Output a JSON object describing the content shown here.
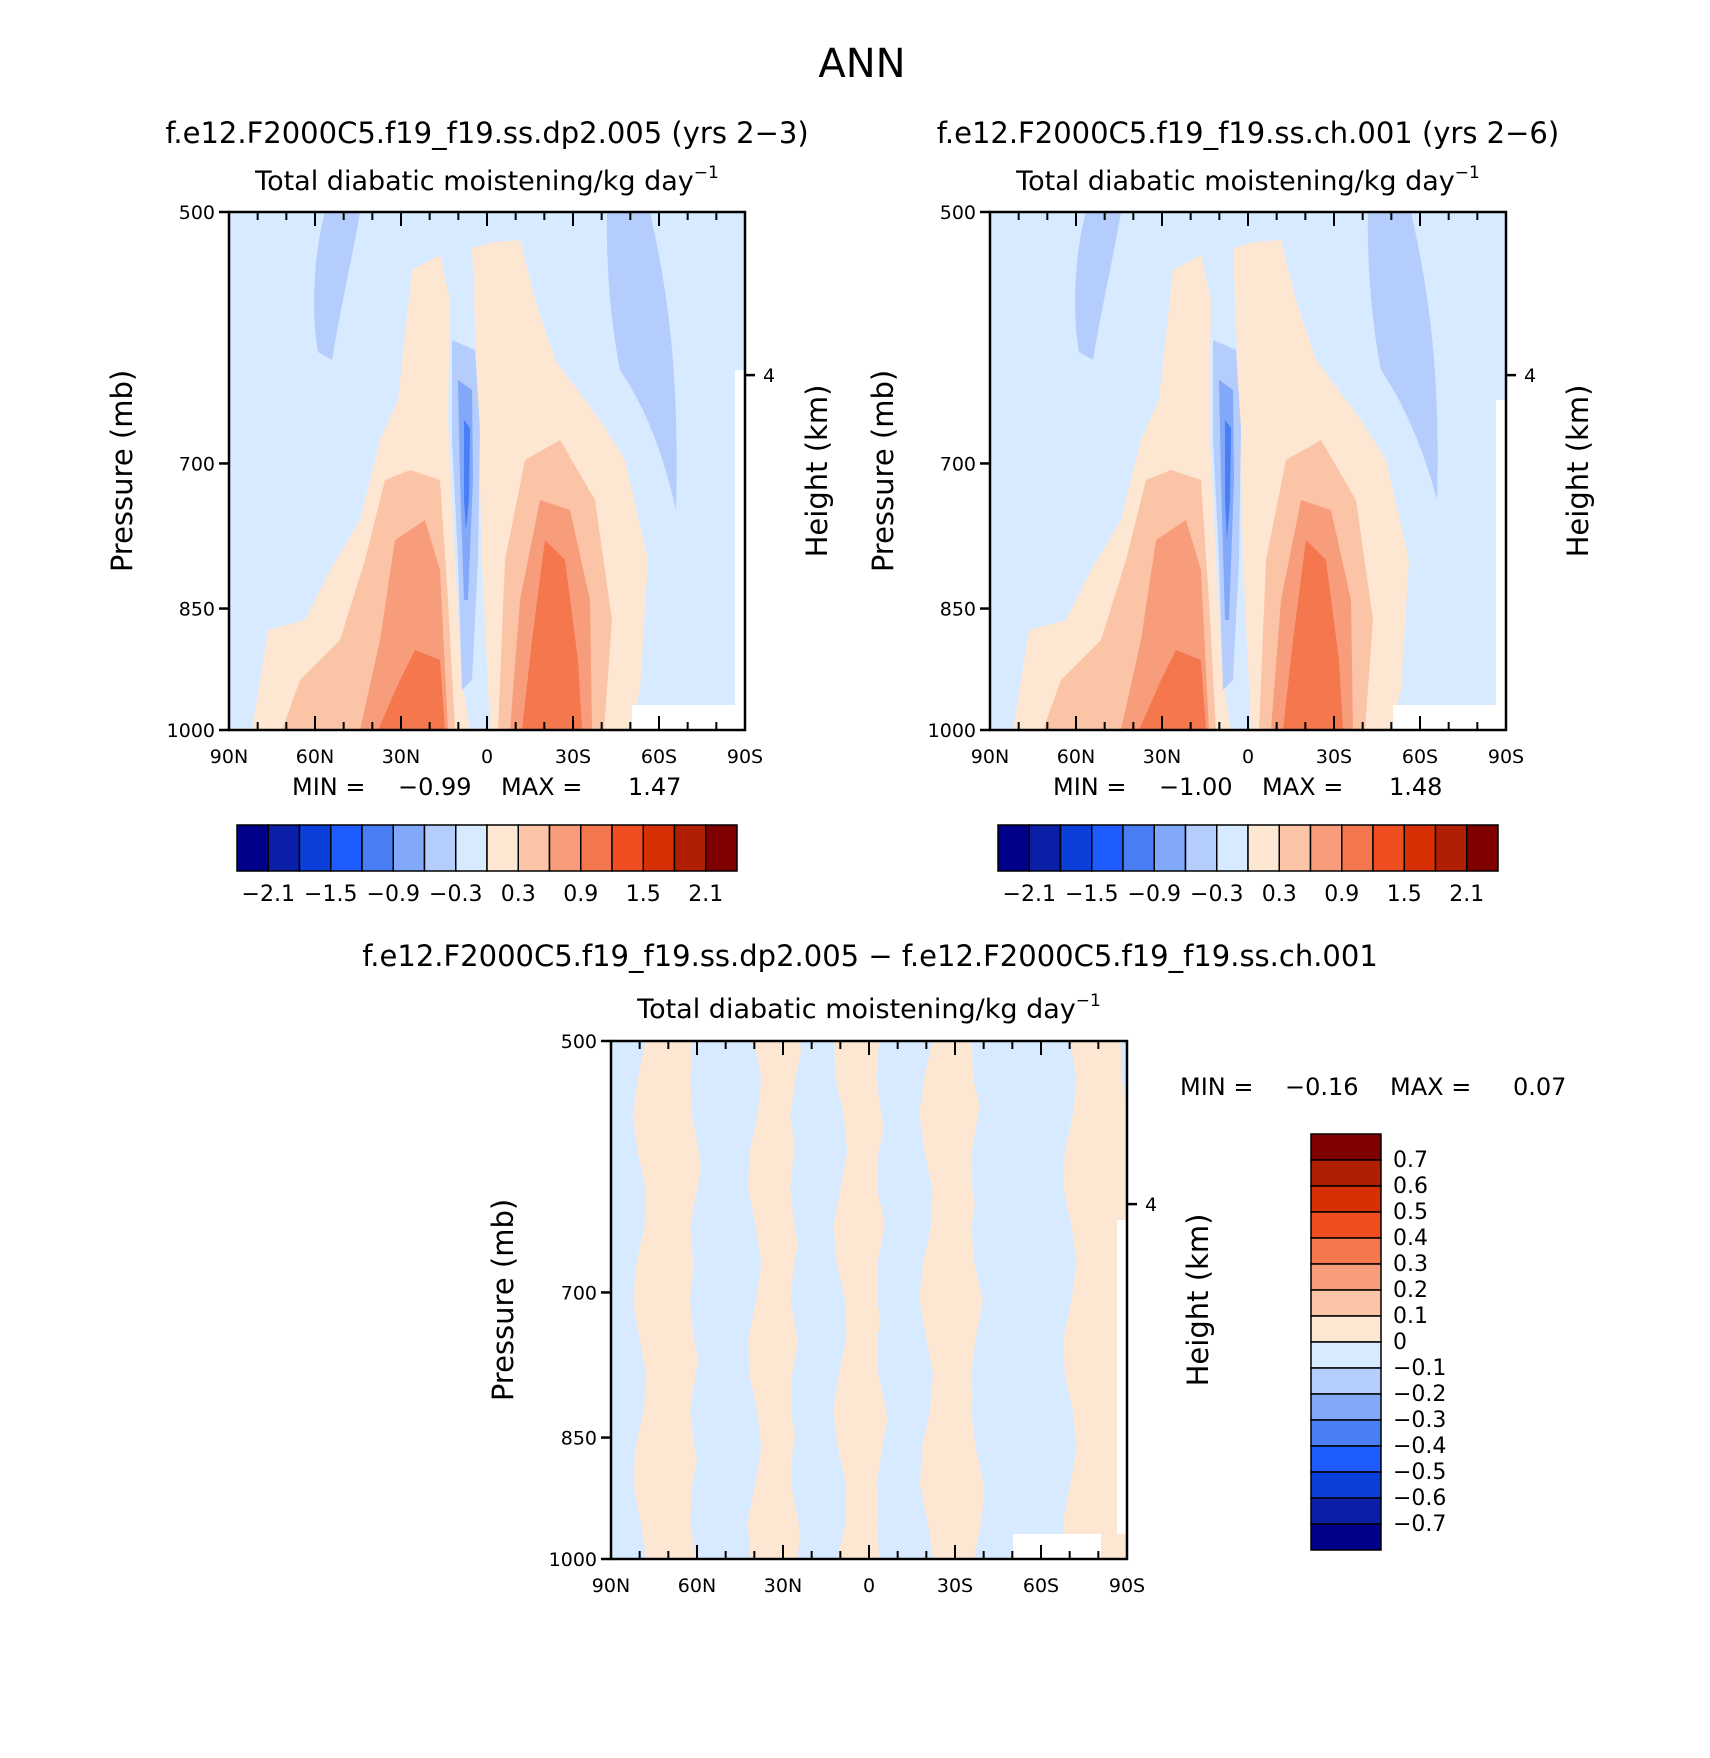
{
  "figure": {
    "title": "ANN",
    "colors": {
      "levels15": [
        "#00008b",
        "#0a1ea8",
        "#0b3fd9",
        "#1f5cff",
        "#4a7ef5",
        "#82a8fa",
        "#b5cdfc",
        "#d8eaff",
        "#fde7d3",
        "#fbc4a7",
        "#f89d7c",
        "#f5774e",
        "#f04d20",
        "#d83005",
        "#b01f02",
        "#7f0000"
      ],
      "levels_diff": [
        "#00008b",
        "#0a1ea8",
        "#0b3fd9",
        "#1f5cff",
        "#4a7ef5",
        "#82a8fa",
        "#b5cdfc",
        "#d8eaff",
        "#fde7d3",
        "#fbc4a7",
        "#f89d7c",
        "#f5774e",
        "#f04d20",
        "#d83005",
        "#b01f02",
        "#7f0000"
      ]
    }
  },
  "panels": [
    {
      "case_title": "f.e12.F2000C5.f19_f19.ss.dp2.005 (yrs 2−3)",
      "var_title": "Total diabatic moistening/kg day",
      "var_sup": "−1",
      "ylabel": "Pressure (mb)",
      "ylabel_right": "Height (km)",
      "min_label": "MIN =",
      "min_value": "−0.99",
      "max_label": "MAX =",
      "max_value": "1.47"
    },
    {
      "case_title": "f.e12.F2000C5.f19_f19.ss.ch.001 (yrs 2−6)",
      "var_title": "Total diabatic moistening/kg day",
      "var_sup": "−1",
      "ylabel": "Pressure (mb)",
      "ylabel_right": "Height (km)",
      "min_label": "MIN =",
      "min_value": "−1.00",
      "max_label": "MAX =",
      "max_value": "1.48"
    },
    {
      "case_title": "f.e12.F2000C5.f19_f19.ss.dp2.005 − f.e12.F2000C5.f19_f19.ss.ch.001",
      "var_title": "Total diabatic moistening/kg day",
      "var_sup": "−1",
      "ylabel": "Pressure (mb)",
      "ylabel_right": "Height (km)",
      "min_label": "MIN =",
      "min_value": "−0.16",
      "max_label": "MAX =",
      "max_value": "0.07"
    }
  ],
  "colorbar_main": {
    "labels": [
      "−2.1",
      "−1.5",
      "−0.9",
      "−0.3",
      "0.3",
      "0.9",
      "1.5",
      "2.1"
    ]
  },
  "colorbar_diff": {
    "labels": [
      "0.7",
      "0.6",
      "0.5",
      "0.4",
      "0.3",
      "0.2",
      "0.1",
      "0",
      "−0.1",
      "−0.2",
      "−0.3",
      "−0.4",
      "−0.5",
      "−0.6",
      "−0.7"
    ]
  },
  "chart_data": [
    {
      "type": "heatmap",
      "title": "f.e12.F2000C5.f19_f19.ss.dp2.005 (yrs 2−3)",
      "subtitle": "Total diabatic moistening/kg day⁻¹",
      "xlabel": "",
      "ylabel": "Pressure (mb)",
      "ylabel_right": "Height (km)",
      "x_ticks": [
        "90N",
        "60N",
        "30N",
        "0",
        "30S",
        "60S",
        "90S"
      ],
      "y_ticks": [
        500,
        700,
        850,
        1000
      ],
      "right_ticks": [
        4
      ],
      "xlim": [
        90,
        -90
      ],
      "ylim": [
        1000,
        500
      ],
      "min": -0.99,
      "max": 1.47,
      "features": [
        {
          "lat": 5,
          "p": 730,
          "value": -0.9
        },
        {
          "lat": 32,
          "p": 940,
          "value": 1.2
        },
        {
          "lat": -22,
          "p": 860,
          "value": 1.2
        },
        {
          "lat": 55,
          "p": 560,
          "value": -0.5
        },
        {
          "lat": -45,
          "p": 580,
          "value": -0.5
        }
      ]
    },
    {
      "type": "heatmap",
      "title": "f.e12.F2000C5.f19_f19.ss.ch.001 (yrs 2−6)",
      "subtitle": "Total diabatic moistening/kg day⁻¹",
      "xlabel": "",
      "ylabel": "Pressure (mb)",
      "ylabel_right": "Height (km)",
      "x_ticks": [
        "90N",
        "60N",
        "30N",
        "0",
        "30S",
        "60S",
        "90S"
      ],
      "y_ticks": [
        500,
        700,
        850,
        1000
      ],
      "right_ticks": [
        4
      ],
      "xlim": [
        90,
        -90
      ],
      "ylim": [
        1000,
        500
      ],
      "min": -1.0,
      "max": 1.48,
      "features": [
        {
          "lat": 5,
          "p": 740,
          "value": -1.0
        },
        {
          "lat": 32,
          "p": 945,
          "value": 1.2
        },
        {
          "lat": -22,
          "p": 865,
          "value": 1.2
        },
        {
          "lat": 55,
          "p": 560,
          "value": -0.5
        },
        {
          "lat": -45,
          "p": 590,
          "value": -0.5
        }
      ]
    },
    {
      "type": "heatmap",
      "title": "f.e12.F2000C5.f19_f19.ss.dp2.005 − f.e12.F2000C5.f19_f19.ss.ch.001",
      "subtitle": "Total diabatic moistening/kg day⁻¹",
      "xlabel": "",
      "ylabel": "Pressure (mb)",
      "ylabel_right": "Height (km)",
      "x_ticks": [
        "90N",
        "60N",
        "30N",
        "0",
        "30S",
        "60S",
        "90S"
      ],
      "y_ticks": [
        500,
        700,
        850,
        1000
      ],
      "right_ticks": [
        4
      ],
      "xlim": [
        90,
        -90
      ],
      "ylim": [
        1000,
        500
      ],
      "min": -0.16,
      "max": 0.07,
      "bands": [
        {
          "lat_from": 90,
          "lat_to": 83,
          "sign": "neg"
        },
        {
          "lat_from": 80,
          "lat_to": 60,
          "sign": "pos"
        },
        {
          "lat_from": 60,
          "lat_to": 40,
          "sign": "neg"
        },
        {
          "lat_from": 40,
          "lat_to": 25,
          "sign": "pos"
        },
        {
          "lat_from": 25,
          "lat_to": 10,
          "sign": "neg"
        },
        {
          "lat_from": 10,
          "lat_to": -5,
          "sign": "pos"
        },
        {
          "lat_from": -5,
          "lat_to": -20,
          "sign": "neg"
        },
        {
          "lat_from": -20,
          "lat_to": -38,
          "sign": "pos"
        },
        {
          "lat_from": -38,
          "lat_to": -70,
          "sign": "neg"
        },
        {
          "lat_from": -70,
          "lat_to": -90,
          "sign": "pos"
        }
      ]
    }
  ]
}
